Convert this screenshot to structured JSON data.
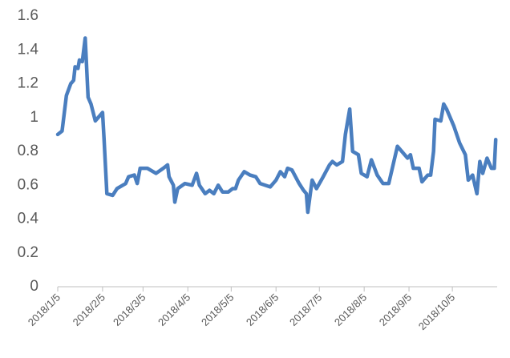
{
  "chart_data": {
    "type": "line",
    "x": [
      "2018/1/5",
      "2018/1/8",
      "2018/1/11",
      "2018/1/14",
      "2018/1/16",
      "2018/1/17",
      "2018/1/19",
      "2018/1/20",
      "2018/1/22",
      "2018/1/24",
      "2018/1/26",
      "2018/1/28",
      "2018/1/31",
      "2018/2/2",
      "2018/2/5",
      "2018/2/6",
      "2018/2/8",
      "2018/2/12",
      "2018/2/15",
      "2018/2/21",
      "2018/2/23",
      "2018/2/27",
      "2018/3/1",
      "2018/3/3",
      "2018/3/5",
      "2018/3/8",
      "2018/3/14",
      "2018/3/19",
      "2018/3/22",
      "2018/3/23",
      "2018/3/26",
      "2018/3/27",
      "2018/3/29",
      "2018/4/3",
      "2018/4/8",
      "2018/4/11",
      "2018/4/13",
      "2018/4/17",
      "2018/4/20",
      "2018/4/23",
      "2018/4/26",
      "2018/4/29",
      "2018/5/3",
      "2018/5/6",
      "2018/5/8",
      "2018/5/10",
      "2018/5/14",
      "2018/5/18",
      "2018/5/22",
      "2018/5/25",
      "2018/6/1",
      "2018/6/5",
      "2018/6/8",
      "2018/6/11",
      "2018/6/13",
      "2018/6/16",
      "2018/6/21",
      "2018/6/24",
      "2018/6/26",
      "2018/6/27",
      "2018/6/30",
      "2018/7/3",
      "2018/7/7",
      "2018/7/12",
      "2018/7/14",
      "2018/7/17",
      "2018/7/21",
      "2018/7/23",
      "2018/7/26",
      "2018/7/28",
      "2018/8/1",
      "2018/8/3",
      "2018/8/7",
      "2018/8/10",
      "2018/8/14",
      "2018/8/18",
      "2018/8/22",
      "2018/8/25",
      "2018/8/28",
      "2018/8/31",
      "2018/9/4",
      "2018/9/6",
      "2018/9/8",
      "2018/9/12",
      "2018/9/14",
      "2018/9/18",
      "2018/9/20",
      "2018/9/22",
      "2018/9/23",
      "2018/9/27",
      "2018/9/29",
      "2018/10/1",
      "2018/10/6",
      "2018/10/10",
      "2018/10/14",
      "2018/10/16",
      "2018/10/19",
      "2018/10/22",
      "2018/10/24",
      "2018/10/26",
      "2018/10/29",
      "2018/11/1",
      "2018/11/3",
      "2018/11/4"
    ],
    "series": [
      {
        "color": "#4a7ebf",
        "values": [
          0.9,
          0.92,
          1.13,
          1.2,
          1.22,
          1.3,
          1.29,
          1.34,
          1.33,
          1.47,
          1.12,
          1.08,
          0.98,
          1.0,
          1.03,
          0.88,
          0.55,
          0.54,
          0.58,
          0.61,
          0.65,
          0.66,
          0.61,
          0.7,
          0.7,
          0.7,
          0.67,
          0.7,
          0.72,
          0.65,
          0.6,
          0.5,
          0.58,
          0.61,
          0.6,
          0.67,
          0.6,
          0.55,
          0.57,
          0.55,
          0.6,
          0.56,
          0.56,
          0.58,
          0.58,
          0.63,
          0.68,
          0.66,
          0.65,
          0.61,
          0.59,
          0.63,
          0.68,
          0.65,
          0.7,
          0.69,
          0.61,
          0.57,
          0.55,
          0.44,
          0.63,
          0.58,
          0.64,
          0.72,
          0.74,
          0.72,
          0.74,
          0.9,
          1.05,
          0.8,
          0.78,
          0.67,
          0.65,
          0.75,
          0.66,
          0.61,
          0.61,
          0.72,
          0.83,
          0.8,
          0.76,
          0.78,
          0.7,
          0.7,
          0.62,
          0.66,
          0.66,
          0.8,
          0.99,
          0.98,
          1.08,
          1.05,
          0.95,
          0.85,
          0.78,
          0.63,
          0.66,
          0.55,
          0.74,
          0.67,
          0.76,
          0.7,
          0.7,
          0.87
        ]
      }
    ],
    "xlim": [
      "2018/1/5",
      "2018/11/5"
    ],
    "xticks": [
      "2018/1/5",
      "2018/2/5",
      "2018/3/5",
      "2018/4/5",
      "2018/5/5",
      "2018/6/5",
      "2018/7/5",
      "2018/8/5",
      "2018/9/5",
      "2018/10/5"
    ],
    "ylim": [
      0,
      1.6
    ],
    "yticks": [
      0,
      0.2,
      0.4,
      0.6,
      0.8,
      1,
      1.2,
      1.4,
      1.6
    ],
    "grid": false
  }
}
